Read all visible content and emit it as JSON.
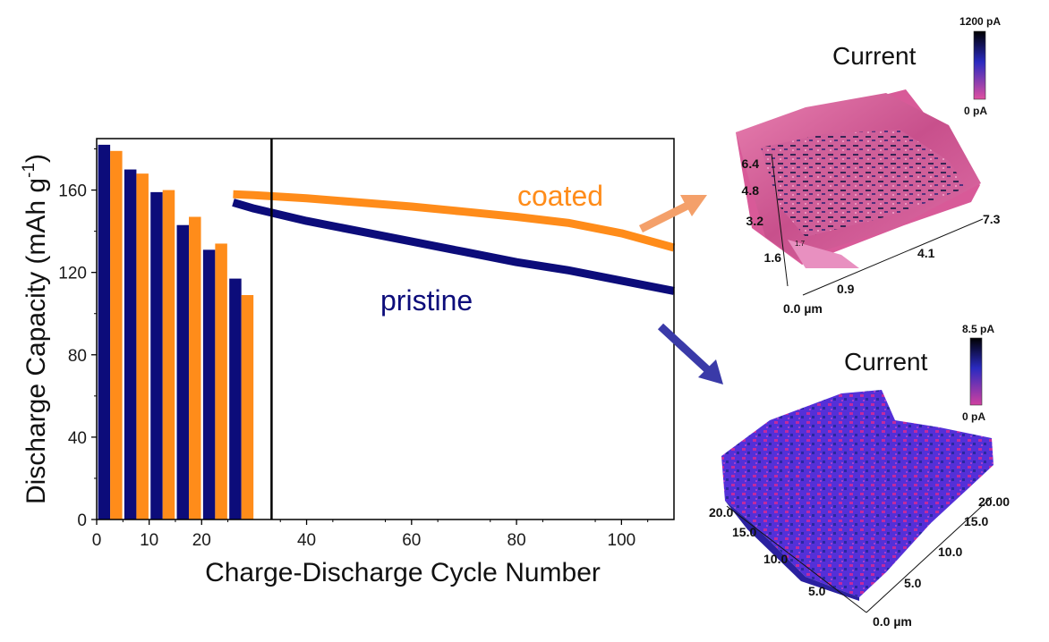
{
  "chart_data": {
    "type": "bar+line",
    "xlabel": "Charge-Discharge Cycle Number",
    "ylabel": "Discharge Capacity (mAh g",
    "ylabel_sup": "-1",
    "ylabel_end": ")",
    "xlim": [
      0,
      110
    ],
    "ylim": [
      0,
      185
    ],
    "xticks": [
      "0",
      "10",
      "20",
      "40",
      "60",
      "80",
      "100"
    ],
    "xtick_values": [
      0,
      10,
      20,
      40,
      60,
      80,
      100
    ],
    "yticks": [
      "0",
      "40",
      "80",
      "120",
      "160"
    ],
    "ytick_values": [
      0,
      40,
      80,
      120,
      160
    ],
    "divider_x": 26,
    "bar_groups": [
      {
        "x": 3,
        "pristine": 182,
        "coated": 179
      },
      {
        "x": 8,
        "pristine": 170,
        "coated": 168
      },
      {
        "x": 13,
        "pristine": 159,
        "coated": 160
      },
      {
        "x": 18,
        "pristine": 143,
        "coated": 147
      },
      {
        "x": 23,
        "pristine": 131,
        "coated": 134
      },
      {
        "x": 28,
        "pristine": 117,
        "coated": 109
      }
    ],
    "series": [
      {
        "name": "coated",
        "color": "#FF8C1A",
        "x": [
          26,
          30,
          40,
          50,
          60,
          70,
          80,
          90,
          100,
          110
        ],
        "y": [
          158,
          157.5,
          156,
          154,
          152,
          149.5,
          147,
          144,
          139,
          132
        ]
      },
      {
        "name": "pristine",
        "color": "#0C0C7A",
        "x": [
          26,
          30,
          40,
          50,
          60,
          70,
          80,
          90,
          100,
          110
        ],
        "y": [
          154,
          151,
          145,
          140,
          135,
          130,
          125,
          121,
          116,
          111
        ]
      }
    ]
  },
  "maps": [
    {
      "title": "Current",
      "colorbar_max": "1200 pA",
      "colorbar_min": "0 pA",
      "z_ticks": [
        "6.4",
        "4.8",
        "3.2",
        "1.6"
      ],
      "y_ticks": [
        "0.9",
        "0.0 µm"
      ],
      "x_ticks": [
        "4.1",
        "7.3"
      ],
      "small_mark": "1.7",
      "colors": [
        "#E0669B",
        "#1A1A66",
        "#C03080"
      ]
    },
    {
      "title": "Current",
      "colorbar_max": "8.5 pA",
      "colorbar_min": "0 pA",
      "left_ticks": [
        "20.0",
        "15.0",
        "10.0",
        "5.0"
      ],
      "right_ticks": [
        "20.00",
        "15.0",
        "10.0",
        "5.0",
        "0.0 µm"
      ],
      "colors": [
        "#5A2FE0",
        "#C02AA0",
        "#2A2AB0"
      ]
    }
  ],
  "colors": {
    "coated": "#FF8C1A",
    "pristine": "#0C0C7A",
    "arrow_coated": "#F4A06A",
    "arrow_pristine": "#3A3AA8"
  }
}
